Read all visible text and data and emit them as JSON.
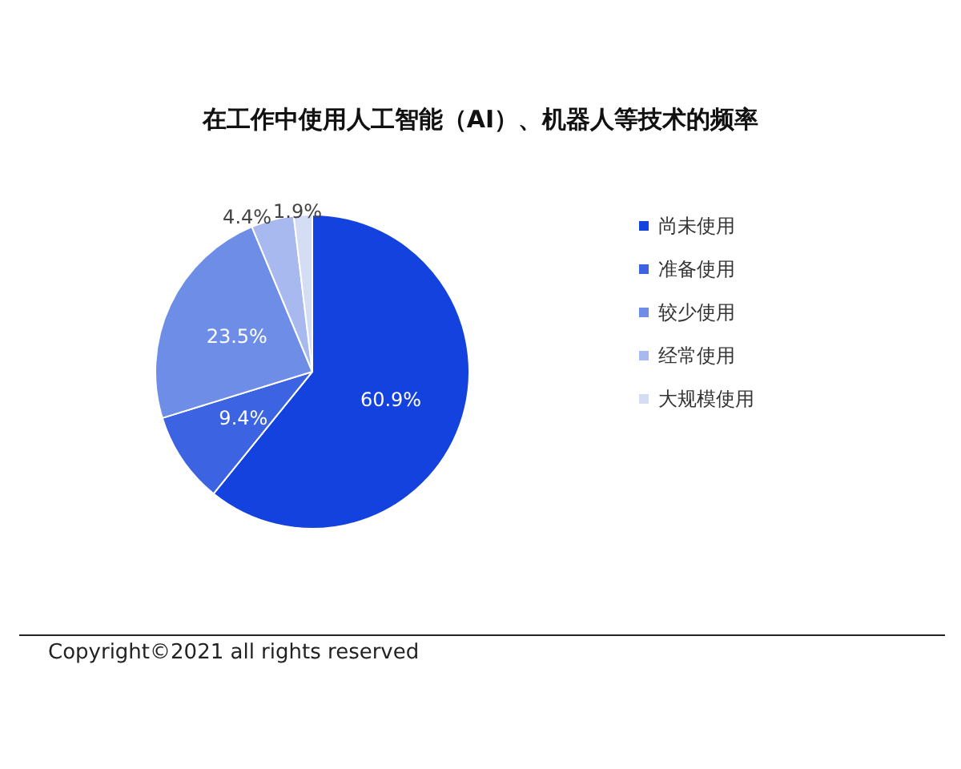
{
  "chart_data": {
    "type": "pie",
    "title": "在工作中使用人工智能（AI）、机器人等技术的频率",
    "categories": [
      "尚未使用",
      "准备使用",
      "较少使用",
      "经常使用",
      "大规模使用"
    ],
    "values": [
      60.9,
      9.4,
      23.5,
      4.4,
      1.9
    ],
    "value_labels": [
      "60.9%",
      "9.4%",
      "23.5%",
      "4.4%",
      "1.9%"
    ],
    "colors": [
      "#1442df",
      "#3b63e2",
      "#6d8de6",
      "#a8b9ef",
      "#d5ddf5"
    ],
    "legend": "right",
    "annotations": [
      "Copyright©2021 all rights reserved"
    ]
  }
}
